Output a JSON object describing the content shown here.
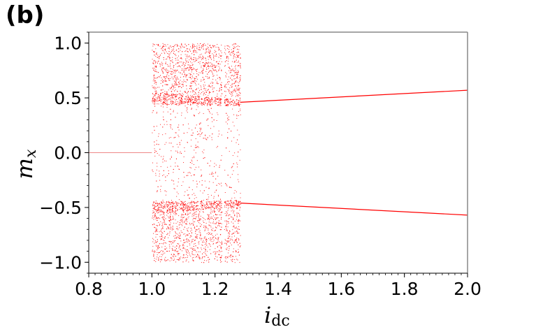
{
  "panel_label": "(b)",
  "chart_data": {
    "type": "scatter",
    "title": "",
    "xlabel": "i",
    "xlabel_sub": "dc",
    "ylabel": "m",
    "ylabel_sub": "x",
    "xlim": [
      0.8,
      2.0
    ],
    "ylim": [
      -1.1,
      1.1
    ],
    "xticks": [
      0.8,
      1.0,
      1.2,
      1.4,
      1.6,
      1.8,
      2.0
    ],
    "xtick_labels": [
      "0.8",
      "1.0",
      "1.2",
      "1.4",
      "1.6",
      "1.8",
      "2.0"
    ],
    "yticks": [
      -1.0,
      -0.5,
      0.0,
      0.5,
      1.0
    ],
    "ytick_labels": [
      "−1.0",
      "−0.5",
      "0.0",
      "0.5",
      "1.0"
    ],
    "grid": false,
    "color": "#ff0000",
    "fixed_point": {
      "x": [
        0.8,
        1.0
      ],
      "y": 0.0
    },
    "chaotic_region": {
      "x": [
        1.0,
        1.28
      ],
      "y": [
        -1.0,
        1.0
      ],
      "dense_bands": [
        [
          0.45,
          1.0
        ],
        [
          -1.0,
          -0.45
        ]
      ],
      "gaps_x": [
        1.225
      ]
    },
    "periodic_branches": [
      {
        "name": "upper",
        "x": [
          1.28,
          2.0
        ],
        "y": [
          0.46,
          0.57
        ]
      },
      {
        "name": "lower",
        "x": [
          1.28,
          2.0
        ],
        "y": [
          -0.46,
          -0.57
        ]
      }
    ]
  }
}
